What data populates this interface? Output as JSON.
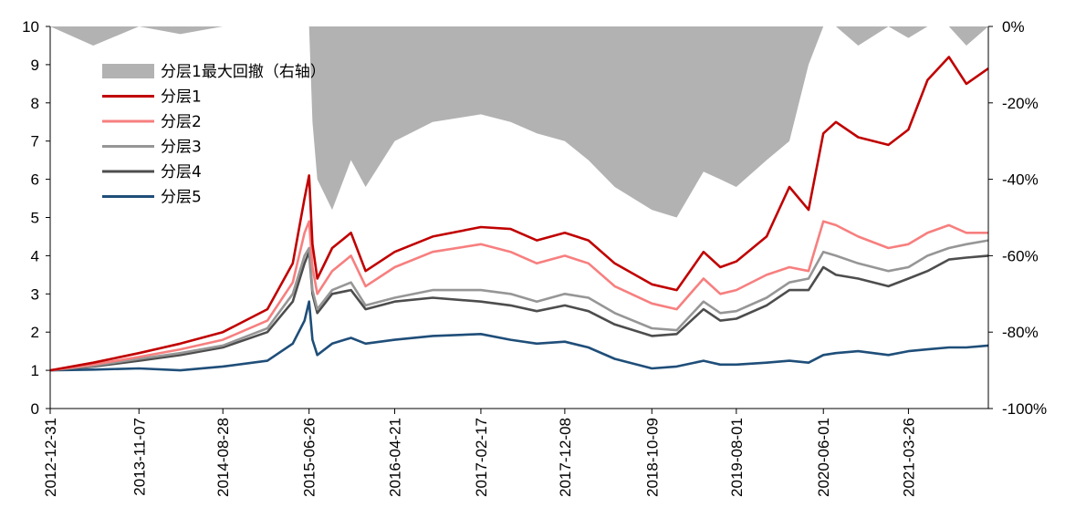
{
  "chart_data": {
    "type": "line",
    "title": "",
    "left_axis": {
      "ylim": [
        0,
        10
      ],
      "ticks": [
        "0",
        "1",
        "2",
        "3",
        "4",
        "5",
        "6",
        "7",
        "8",
        "9",
        "10"
      ]
    },
    "right_axis": {
      "ylim": [
        -100,
        0
      ],
      "ticks": [
        "0%",
        "-20%",
        "-40%",
        "-60%",
        "-80%",
        "-100%"
      ]
    },
    "x_ticks": [
      "2012-12-31",
      "2013-11-07",
      "2014-08-28",
      "2015-06-26",
      "2016-04-21",
      "2017-02-17",
      "2017-12-08",
      "2018-10-09",
      "2019-08-01",
      "2020-06-01",
      "2021-03-26"
    ],
    "grid": false,
    "legend_position": "top-left",
    "x": [
      "2012-12-31",
      "2013-05-31",
      "2013-11-07",
      "2014-04-01",
      "2014-08-28",
      "2015-01-31",
      "2015-04-30",
      "2015-06-10",
      "2015-06-26",
      "2015-07-08",
      "2015-07-25",
      "2015-09-15",
      "2015-11-20",
      "2016-01-10",
      "2016-04-21",
      "2016-09-01",
      "2017-02-17",
      "2017-06-01",
      "2017-09-01",
      "2017-12-08",
      "2018-03-01",
      "2018-06-01",
      "2018-10-09",
      "2019-01-04",
      "2019-04-08",
      "2019-06-06",
      "2019-08-01",
      "2019-11-15",
      "2020-02-03",
      "2020-04-10",
      "2020-06-01",
      "2020-07-15",
      "2020-10-01",
      "2021-01-15",
      "2021-03-26",
      "2021-06-01",
      "2021-08-15",
      "2021-10-15",
      "2021-12-31"
    ],
    "series": [
      {
        "name": "分层1最大回撤（右轴）",
        "axis": "right",
        "color": "#b2b2b2",
        "values": [
          0,
          -5,
          0,
          -2,
          0,
          0,
          0,
          0,
          0,
          -25,
          -40,
          -48,
          -35,
          -42,
          -30,
          -25,
          -23,
          -25,
          -28,
          -30,
          -35,
          -42,
          -48,
          -50,
          -38,
          -40,
          -42,
          -35,
          -30,
          -10,
          0,
          0,
          -5,
          0,
          -3,
          0,
          0,
          -5,
          0
        ]
      },
      {
        "name": "分层1",
        "axis": "left",
        "color": "#c00000",
        "values": [
          1.0,
          1.2,
          1.45,
          1.7,
          2.0,
          2.6,
          3.8,
          5.5,
          6.1,
          4.3,
          3.4,
          4.2,
          4.6,
          3.6,
          4.1,
          4.5,
          4.75,
          4.7,
          4.4,
          4.6,
          4.4,
          3.8,
          3.25,
          3.1,
          4.1,
          3.7,
          3.85,
          4.5,
          5.8,
          5.2,
          7.2,
          7.5,
          7.1,
          6.9,
          7.3,
          8.6,
          9.2,
          8.5,
          8.9
        ]
      },
      {
        "name": "分层2",
        "axis": "left",
        "color": "#f77f7f",
        "values": [
          1.0,
          1.15,
          1.35,
          1.55,
          1.8,
          2.3,
          3.3,
          4.6,
          4.9,
          3.7,
          3.0,
          3.6,
          4.0,
          3.2,
          3.7,
          4.1,
          4.3,
          4.1,
          3.8,
          4.0,
          3.8,
          3.2,
          2.75,
          2.6,
          3.4,
          3.0,
          3.1,
          3.5,
          3.7,
          3.6,
          4.9,
          4.8,
          4.5,
          4.2,
          4.3,
          4.6,
          4.8,
          4.6,
          4.6
        ]
      },
      {
        "name": "分层3",
        "axis": "left",
        "color": "#969696",
        "values": [
          1.0,
          1.12,
          1.3,
          1.45,
          1.65,
          2.1,
          3.0,
          4.0,
          4.2,
          3.1,
          2.6,
          3.1,
          3.3,
          2.7,
          2.9,
          3.1,
          3.1,
          3.0,
          2.8,
          3.0,
          2.9,
          2.5,
          2.1,
          2.05,
          2.8,
          2.5,
          2.55,
          2.9,
          3.3,
          3.4,
          4.1,
          4.0,
          3.8,
          3.6,
          3.7,
          4.0,
          4.2,
          4.3,
          4.4
        ]
      },
      {
        "name": "分层4",
        "axis": "left",
        "color": "#4d4d4d",
        "values": [
          1.0,
          1.1,
          1.25,
          1.4,
          1.6,
          2.0,
          2.8,
          3.8,
          4.1,
          3.0,
          2.5,
          3.0,
          3.1,
          2.6,
          2.8,
          2.9,
          2.8,
          2.7,
          2.55,
          2.7,
          2.55,
          2.2,
          1.9,
          1.95,
          2.6,
          2.3,
          2.35,
          2.7,
          3.1,
          3.1,
          3.7,
          3.5,
          3.4,
          3.2,
          3.4,
          3.6,
          3.9,
          3.95,
          4.0
        ]
      },
      {
        "name": "分层5",
        "axis": "left",
        "color": "#1f4e79",
        "values": [
          1.0,
          1.02,
          1.05,
          1.0,
          1.1,
          1.25,
          1.7,
          2.3,
          2.8,
          1.8,
          1.4,
          1.7,
          1.85,
          1.7,
          1.8,
          1.9,
          1.95,
          1.8,
          1.7,
          1.75,
          1.6,
          1.3,
          1.05,
          1.1,
          1.25,
          1.15,
          1.15,
          1.2,
          1.25,
          1.2,
          1.4,
          1.45,
          1.5,
          1.4,
          1.5,
          1.55,
          1.6,
          1.6,
          1.65
        ]
      }
    ]
  }
}
